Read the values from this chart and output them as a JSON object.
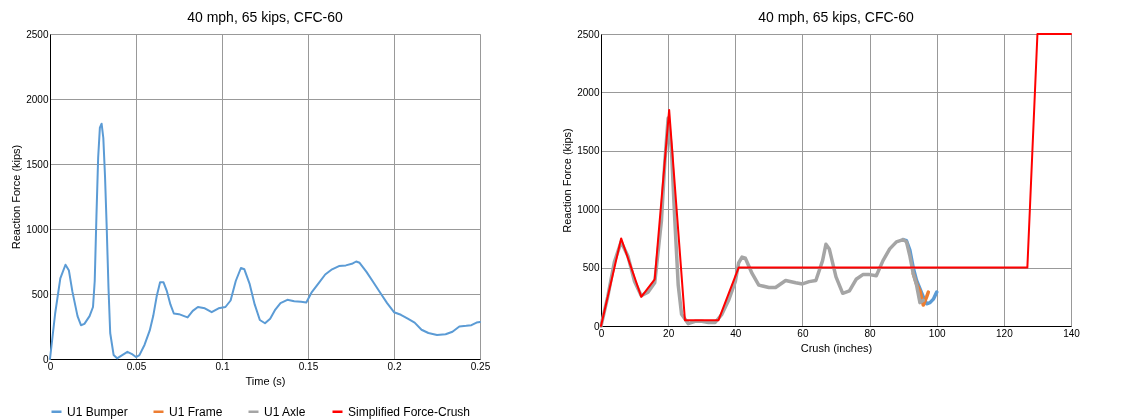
{
  "chart_data": [
    {
      "type": "line",
      "title": "40 mph, 65 kips, CFC-60",
      "xlabel": "Time (s)",
      "ylabel": "Reaction Force (kips)",
      "xlim": [
        0,
        0.25
      ],
      "xticks": [
        0,
        0.05,
        0.1,
        0.15,
        0.2,
        0.25
      ],
      "ylim": [
        0,
        2500
      ],
      "yticks": [
        0,
        500,
        1000,
        1500,
        2000,
        2500
      ],
      "grid": true,
      "legend": false,
      "series": [
        {
          "color": "#5b9bd5",
          "x": [
            0,
            0.003,
            0.006,
            0.009,
            0.011,
            0.013,
            0.016,
            0.018,
            0.02,
            0.023,
            0.025,
            0.026,
            0.027,
            0.028,
            0.029,
            0.03,
            0.031,
            0.032,
            0.033,
            0.034,
            0.035,
            0.037,
            0.039,
            0.042,
            0.045,
            0.048,
            0.05,
            0.052,
            0.055,
            0.058,
            0.06,
            0.062,
            0.064,
            0.066,
            0.068,
            0.07,
            0.072,
            0.075,
            0.078,
            0.08,
            0.083,
            0.086,
            0.09,
            0.094,
            0.098,
            0.102,
            0.105,
            0.108,
            0.111,
            0.113,
            0.116,
            0.119,
            0.122,
            0.125,
            0.128,
            0.131,
            0.134,
            0.138,
            0.142,
            0.146,
            0.149,
            0.152,
            0.156,
            0.16,
            0.164,
            0.168,
            0.172,
            0.176,
            0.178,
            0.18,
            0.184,
            0.188,
            0.192,
            0.196,
            0.2,
            0.204,
            0.208,
            0.212,
            0.216,
            0.22,
            0.225,
            0.23,
            0.234,
            0.238,
            0.242,
            0.245,
            0.248,
            0.25
          ],
          "values": [
            0,
            350,
            620,
            725,
            680,
            520,
            330,
            260,
            270,
            330,
            400,
            600,
            1100,
            1550,
            1780,
            1810,
            1700,
            1400,
            1000,
            550,
            200,
            30,
            5,
            30,
            55,
            35,
            15,
            30,
            110,
            220,
            330,
            480,
            590,
            590,
            520,
            420,
            350,
            345,
            330,
            320,
            370,
            400,
            390,
            360,
            390,
            400,
            450,
            600,
            700,
            690,
            580,
            420,
            300,
            275,
            310,
            380,
            430,
            455,
            445,
            440,
            435,
            510,
            580,
            650,
            690,
            715,
            720,
            735,
            750,
            740,
            670,
            590,
            510,
            430,
            360,
            340,
            310,
            280,
            225,
            200,
            185,
            190,
            210,
            250,
            255,
            260,
            280,
            285
          ]
        }
      ]
    },
    {
      "type": "line",
      "title": "40 mph, 65 kips, CFC-60",
      "xlabel": "Crush (inches)",
      "ylabel": "Reaction Force (kips)",
      "xlim": [
        0,
        140
      ],
      "xticks": [
        0,
        20,
        40,
        60,
        80,
        100,
        120,
        140
      ],
      "ylim": [
        0,
        2500
      ],
      "yticks": [
        0,
        500,
        1000,
        1500,
        2000,
        2500
      ],
      "grid": true,
      "legend": "bottom",
      "series": [
        {
          "name": "U1 Bumper",
          "color": "#5b9bd5",
          "x": [
            90,
            91,
            92,
            93,
            94,
            95,
            96,
            97,
            98,
            99,
            100
          ],
          "values": [
            740,
            730,
            650,
            500,
            390,
            320,
            250,
            190,
            200,
            230,
            290
          ]
        },
        {
          "name": "U1 Frame",
          "color": "#ed7d31",
          "x": [
            93,
            94,
            95,
            96,
            97,
            97.5
          ],
          "values": [
            450,
            360,
            300,
            180,
            250,
            290
          ]
        },
        {
          "name": "U1 Axle",
          "color": "#a5a5a5",
          "x": [
            0,
            2,
            4,
            6,
            8,
            10,
            12,
            14,
            16,
            18,
            19,
            20,
            21,
            22,
            23,
            24,
            26,
            28,
            30,
            32,
            34,
            36,
            38,
            40,
            41,
            42,
            43,
            45,
            47,
            50,
            52,
            55,
            58,
            60,
            62,
            64,
            66,
            67,
            68,
            70,
            72,
            74,
            76,
            78,
            80,
            82,
            84,
            86,
            88,
            90,
            91,
            92,
            93,
            94,
            95,
            96
          ],
          "values": [
            0,
            250,
            550,
            720,
            600,
            380,
            260,
            290,
            370,
            900,
            1400,
            1780,
            1500,
            900,
            350,
            100,
            20,
            40,
            40,
            30,
            30,
            100,
            220,
            380,
            540,
            590,
            580,
            450,
            350,
            330,
            330,
            390,
            370,
            360,
            380,
            390,
            560,
            700,
            660,
            420,
            280,
            300,
            400,
            440,
            440,
            430,
            560,
            660,
            720,
            740,
            720,
            600,
            450,
            350,
            200,
            220
          ]
        },
        {
          "name": "Simplified Force-Crush",
          "color": "#ff0000",
          "x": [
            0,
            6,
            12,
            16,
            20.3,
            25,
            35,
            41,
            127,
            130,
            140
          ],
          "values": [
            0,
            750,
            250,
            400,
            1850,
            50,
            50,
            500,
            500,
            2500,
            2500
          ]
        }
      ]
    }
  ]
}
